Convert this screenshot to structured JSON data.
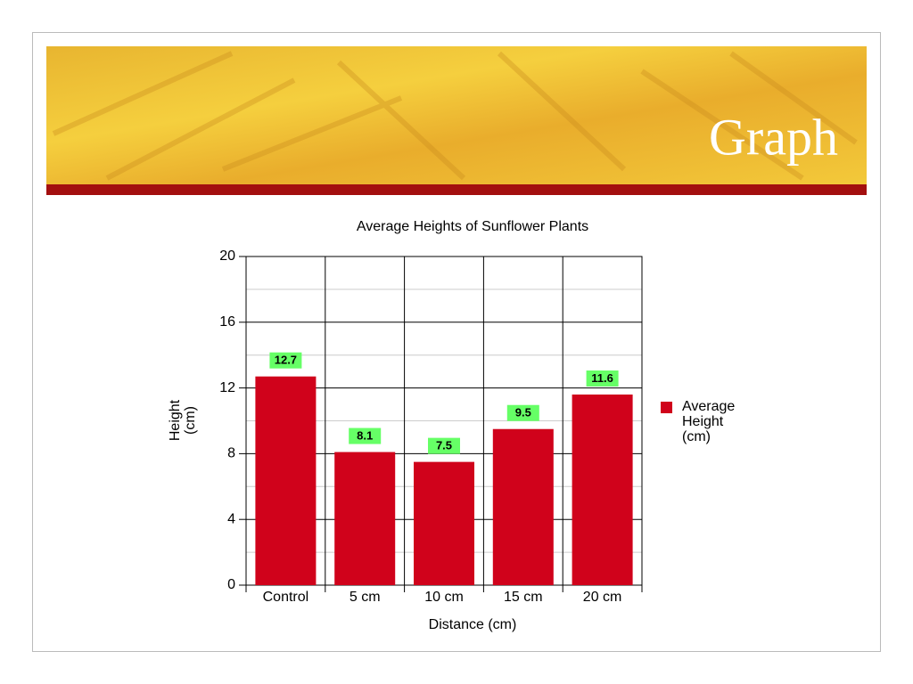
{
  "header": {
    "title": "Graph"
  },
  "chart_data": {
    "type": "bar",
    "title": "Average Heights of Sunflower Plants",
    "x_label": "Distance (cm)",
    "y_label": "Height (cm)",
    "categories": [
      "Control",
      "5 cm",
      "10 cm",
      "15 cm",
      "20 cm"
    ],
    "series": [
      {
        "name": "Average Height (cm)",
        "color": "#d0021b",
        "values": [
          12.7,
          8.1,
          7.5,
          9.5,
          11.6
        ]
      }
    ],
    "ylim": [
      0,
      20
    ],
    "yticks": [
      0,
      4,
      8,
      12,
      16,
      20
    ],
    "yminor_ticks": [
      2,
      6,
      10,
      14,
      18
    ],
    "grid": true,
    "legend": "right",
    "value_label_color": "#66ff66"
  }
}
